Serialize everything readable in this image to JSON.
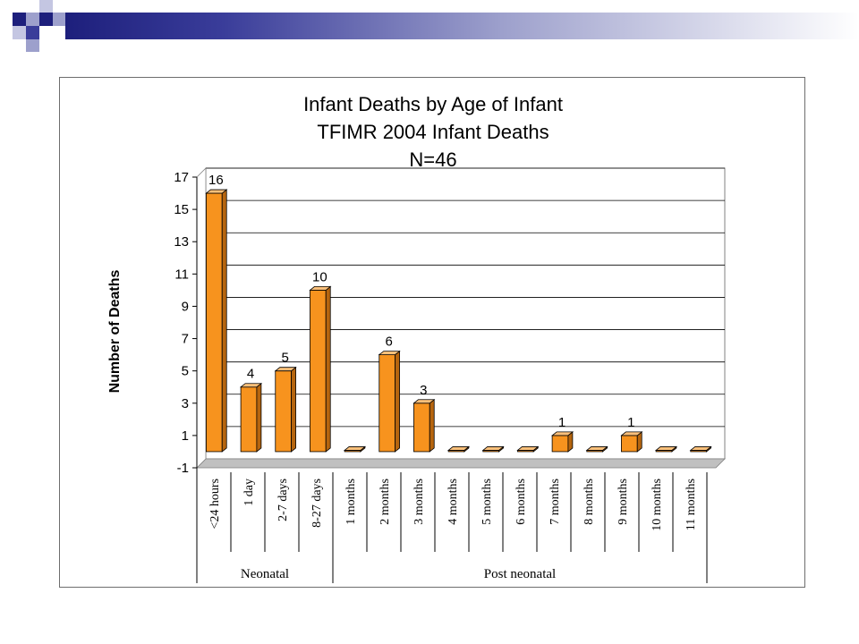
{
  "slide": {
    "accent_dark": "#1d1f7c",
    "accent_light": "#9da0cc"
  },
  "chart_data": {
    "type": "bar",
    "title": [
      "Infant Deaths by Age of Infant",
      "TFIMR 2004 Infant Deaths",
      "N=46"
    ],
    "ylabel": "Number of Deaths",
    "xlabel": "",
    "ylim": [
      -1,
      17
    ],
    "yticks": [
      -1,
      1,
      3,
      5,
      7,
      9,
      11,
      13,
      15,
      17
    ],
    "grid": true,
    "bar_color": "#f7931e",
    "categories": [
      "<24 hours",
      "1 day",
      "2-7 days",
      "8-27 days",
      "1 months",
      "2 months",
      "3 months",
      "4 months",
      "5 months",
      "6 months",
      "7 months",
      "8 months",
      "9 months",
      "10 months",
      "11 months"
    ],
    "values": [
      16,
      4,
      5,
      10,
      0,
      6,
      3,
      0,
      0,
      0,
      1,
      0,
      1,
      0,
      0
    ],
    "data_labels": [
      "16",
      "4",
      "5",
      "10",
      "",
      "6",
      "3",
      "",
      "",
      "",
      "1",
      "",
      "1",
      "",
      ""
    ],
    "groups": [
      {
        "label": "Neonatal",
        "span": 4
      },
      {
        "label": "Post neonatal",
        "span": 11
      }
    ]
  }
}
